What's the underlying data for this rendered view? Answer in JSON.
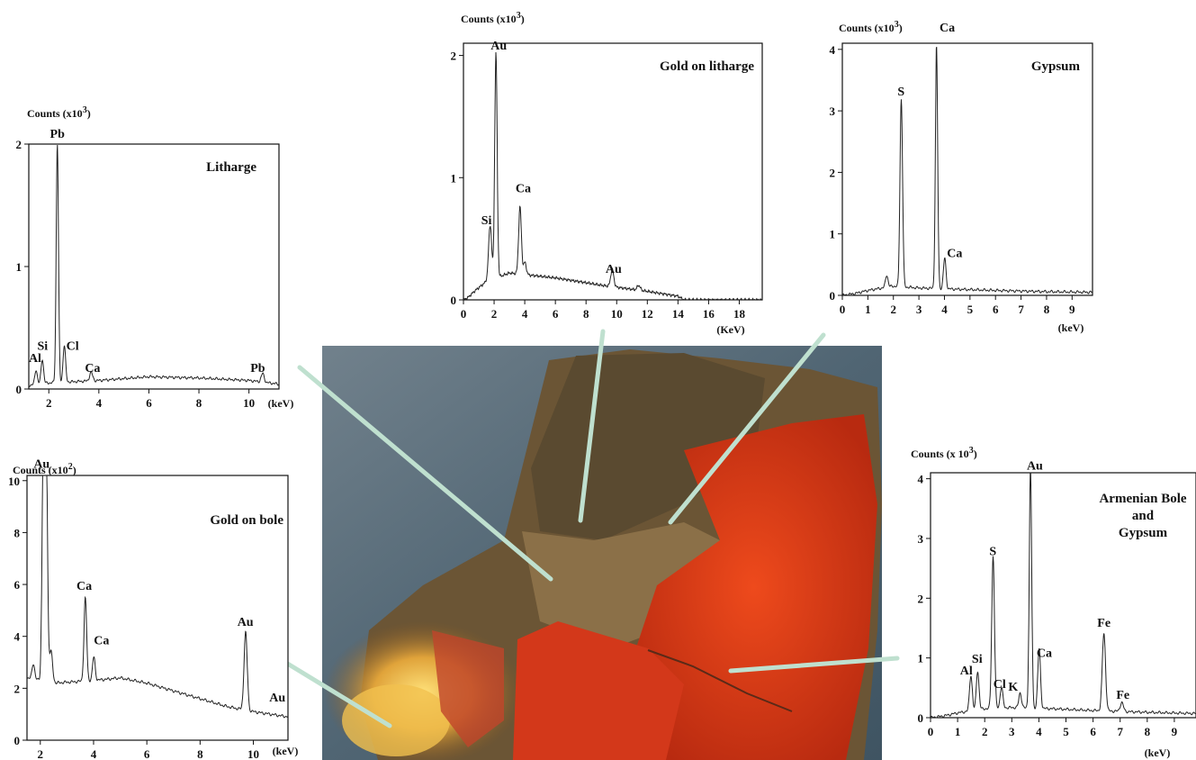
{
  "photo": {
    "description_colors": {
      "bg_top": "#6d7f8c",
      "bg_mid": "#4f6473",
      "rock_brown": "#6b5535",
      "gold": "#e9b84a",
      "bole_red": "#d93a15"
    }
  },
  "connector_color": "#bfe0cf",
  "chart_data": [
    {
      "type": "line",
      "id": "litharge",
      "title": "Litharge",
      "ylabel_main": "Counts (x10",
      "ylabel_exp": "3",
      "ylabel_close": ")",
      "xlabel": "(keV)",
      "xlim": [
        1.2,
        11.2
      ],
      "ylim": [
        0,
        2
      ],
      "xticks": [
        2,
        4,
        6,
        8,
        10
      ],
      "yticks": [
        0,
        1,
        2
      ],
      "peaks": [
        {
          "x": 1.49,
          "h": 0.12,
          "w": 0.05
        },
        {
          "x": 1.74,
          "h": 0.2,
          "w": 0.05
        },
        {
          "x": 2.34,
          "h": 1.95,
          "w": 0.045
        },
        {
          "x": 2.62,
          "h": 0.3,
          "w": 0.05
        },
        {
          "x": 3.69,
          "h": 0.07,
          "w": 0.06
        },
        {
          "x": 10.55,
          "h": 0.07,
          "w": 0.06
        }
      ],
      "background": [
        [
          1.2,
          0.03
        ],
        [
          2.0,
          0.05
        ],
        [
          4.0,
          0.07
        ],
        [
          6.0,
          0.1
        ],
        [
          8.0,
          0.09
        ],
        [
          10.0,
          0.07
        ],
        [
          11.2,
          0.04
        ]
      ],
      "labels": [
        {
          "text": "Pb",
          "x": 2.34,
          "y": 2.05
        },
        {
          "text": "Al",
          "x": 1.45,
          "y": 0.22
        },
        {
          "text": "Si",
          "x": 1.75,
          "y": 0.32
        },
        {
          "text": "Cl",
          "x": 2.95,
          "y": 0.32
        },
        {
          "text": "Ca",
          "x": 3.75,
          "y": 0.14
        },
        {
          "text": "Pb",
          "x": 10.35,
          "y": 0.14
        }
      ]
    },
    {
      "type": "line",
      "id": "gold-on-litharge",
      "title": "Gold on litharge",
      "ylabel_main": "Counts (x10",
      "ylabel_exp": "3",
      "ylabel_close": ")",
      "xlabel": "(KeV)",
      "xlim": [
        0,
        19.5
      ],
      "ylim": [
        0,
        2.1
      ],
      "xticks": [
        0,
        2,
        4,
        6,
        8,
        10,
        12,
        14,
        16,
        18
      ],
      "yticks": [
        0,
        1,
        2
      ],
      "peaks": [
        {
          "x": 1.74,
          "h": 0.45,
          "w": 0.1
        },
        {
          "x": 2.12,
          "h": 1.85,
          "w": 0.08
        },
        {
          "x": 3.69,
          "h": 0.55,
          "w": 0.09
        },
        {
          "x": 4.01,
          "h": 0.1,
          "w": 0.09
        },
        {
          "x": 9.71,
          "h": 0.14,
          "w": 0.1
        },
        {
          "x": 11.44,
          "h": 0.04,
          "w": 0.1
        }
      ],
      "background": [
        [
          0,
          0.0
        ],
        [
          0.3,
          0.02
        ],
        [
          0.8,
          0.08
        ],
        [
          1.5,
          0.15
        ],
        [
          3.0,
          0.22
        ],
        [
          6.0,
          0.18
        ],
        [
          9.0,
          0.12
        ],
        [
          12.0,
          0.07
        ],
        [
          14.0,
          0.03
        ],
        [
          14.4,
          0.0
        ],
        [
          19.5,
          0.0
        ]
      ],
      "labels": [
        {
          "text": "Au",
          "x": 2.3,
          "y": 2.05
        },
        {
          "text": "Si",
          "x": 1.5,
          "y": 0.62
        },
        {
          "text": "Ca",
          "x": 3.9,
          "y": 0.88
        },
        {
          "text": "Au",
          "x": 9.8,
          "y": 0.22
        }
      ]
    },
    {
      "type": "line",
      "id": "gypsum",
      "title": "Gypsum",
      "ylabel_main": "Counts (x10",
      "ylabel_exp": "3",
      "ylabel_close": ")",
      "extra_label": "Ca",
      "xlabel": "(keV)",
      "xlim": [
        0,
        9.8
      ],
      "ylim": [
        0,
        4.1
      ],
      "xticks": [
        0,
        1,
        2,
        3,
        4,
        5,
        6,
        7,
        8,
        9
      ],
      "yticks": [
        0,
        1,
        2,
        3,
        4
      ],
      "peaks": [
        {
          "x": 1.74,
          "h": 0.2,
          "w": 0.05
        },
        {
          "x": 2.31,
          "h": 3.05,
          "w": 0.05
        },
        {
          "x": 3.69,
          "h": 3.95,
          "w": 0.045
        },
        {
          "x": 4.01,
          "h": 0.5,
          "w": 0.05
        }
      ],
      "background": [
        [
          0,
          0.0
        ],
        [
          0.5,
          0.03
        ],
        [
          1.0,
          0.08
        ],
        [
          2.0,
          0.15
        ],
        [
          3.0,
          0.12
        ],
        [
          4.5,
          0.1
        ],
        [
          6.0,
          0.08
        ],
        [
          8.0,
          0.06
        ],
        [
          9.8,
          0.05
        ]
      ],
      "labels": [
        {
          "text": "S",
          "x": 2.3,
          "y": 3.25
        },
        {
          "text": "Ca",
          "x": 4.4,
          "y": 0.62
        }
      ]
    },
    {
      "type": "line",
      "id": "gold-on-bole",
      "title": "Gold on bole",
      "ylabel_main": "Counts (x10",
      "ylabel_exp": "2",
      "ylabel_close": ")",
      "xlabel": "(keV)",
      "xlim": [
        1.5,
        11.3
      ],
      "ylim": [
        0,
        10.2
      ],
      "xticks": [
        2,
        4,
        6,
        8,
        10
      ],
      "yticks": [
        0,
        2,
        4,
        6,
        8,
        10
      ],
      "peaks": [
        {
          "x": 1.74,
          "h": 0.6,
          "w": 0.05
        },
        {
          "x": 2.12,
          "h": 10.0,
          "w": 0.05
        },
        {
          "x": 2.22,
          "h": 9.0,
          "w": 0.05
        },
        {
          "x": 2.4,
          "h": 1.2,
          "w": 0.06
        },
        {
          "x": 3.69,
          "h": 3.2,
          "w": 0.05
        },
        {
          "x": 4.01,
          "h": 0.9,
          "w": 0.05
        },
        {
          "x": 9.71,
          "h": 3.0,
          "w": 0.06
        },
        {
          "x": 11.44,
          "h": 0.3,
          "w": 0.06
        }
      ],
      "background": [
        [
          1.5,
          2.4
        ],
        [
          2.5,
          2.2
        ],
        [
          4.0,
          2.3
        ],
        [
          5.0,
          2.4
        ],
        [
          6.0,
          2.2
        ],
        [
          7.0,
          1.9
        ],
        [
          8.0,
          1.6
        ],
        [
          9.0,
          1.3
        ],
        [
          10.0,
          1.1
        ],
        [
          11.3,
          0.9
        ]
      ],
      "labels": [
        {
          "text": "Au",
          "x": 2.05,
          "y": 10.5
        },
        {
          "text": "Ca",
          "x": 3.65,
          "y": 5.8
        },
        {
          "text": "Ca",
          "x": 4.3,
          "y": 3.7
        },
        {
          "text": "Au",
          "x": 9.7,
          "y": 4.4
        },
        {
          "text": "Au",
          "x": 10.9,
          "y": 1.5
        }
      ]
    },
    {
      "type": "line",
      "id": "armenian-bole-gypsum",
      "title_lines": [
        "Armenian Bole",
        "and",
        "Gypsum"
      ],
      "ylabel_main": "Counts (x 10",
      "ylabel_exp": "3",
      "ylabel_close": ")",
      "xlabel": "(keV)",
      "xlim": [
        0,
        9.8
      ],
      "ylim": [
        0,
        4.1
      ],
      "xticks": [
        0,
        1,
        2,
        3,
        4,
        5,
        6,
        7,
        8,
        9
      ],
      "yticks": [
        0,
        1,
        2,
        3,
        4
      ],
      "peaks": [
        {
          "x": 1.49,
          "h": 0.6,
          "w": 0.05
        },
        {
          "x": 1.74,
          "h": 0.65,
          "w": 0.05
        },
        {
          "x": 2.31,
          "h": 2.55,
          "w": 0.05
        },
        {
          "x": 2.62,
          "h": 0.35,
          "w": 0.05
        },
        {
          "x": 3.31,
          "h": 0.25,
          "w": 0.05
        },
        {
          "x": 3.69,
          "h": 4.0,
          "w": 0.045
        },
        {
          "x": 4.01,
          "h": 1.0,
          "w": 0.05
        },
        {
          "x": 6.4,
          "h": 1.3,
          "w": 0.06
        },
        {
          "x": 7.06,
          "h": 0.15,
          "w": 0.06
        }
      ],
      "background": [
        [
          0,
          0.0
        ],
        [
          0.5,
          0.03
        ],
        [
          1.0,
          0.08
        ],
        [
          2.0,
          0.15
        ],
        [
          3.0,
          0.17
        ],
        [
          4.5,
          0.15
        ],
        [
          6.0,
          0.12
        ],
        [
          8.0,
          0.09
        ],
        [
          9.8,
          0.07
        ]
      ],
      "labels": [
        {
          "text": "Au",
          "x": 3.85,
          "y": 4.15
        },
        {
          "text": "S",
          "x": 2.3,
          "y": 2.72
        },
        {
          "text": "Al",
          "x": 1.32,
          "y": 0.72
        },
        {
          "text": "Si",
          "x": 1.72,
          "y": 0.92
        },
        {
          "text": "Cl",
          "x": 2.55,
          "y": 0.5
        },
        {
          "text": "K",
          "x": 3.05,
          "y": 0.45
        },
        {
          "text": "Ca",
          "x": 4.2,
          "y": 1.02
        },
        {
          "text": "Fe",
          "x": 6.4,
          "y": 1.52
        },
        {
          "text": "Fe",
          "x": 7.1,
          "y": 0.32
        }
      ]
    }
  ]
}
